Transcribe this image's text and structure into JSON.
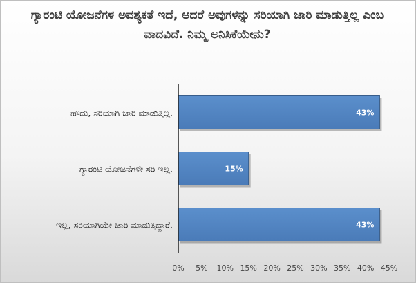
{
  "chart_data": {
    "type": "bar",
    "orientation": "horizontal",
    "title": "ಗ್ಯಾರಂಟಿ ಯೋಜನೆಗಳ ಅವಶ್ಯಕತೆ ಇದೆ, ಆದರೆ ಅವುಗಳನ್ನು ಸರಿಯಾಗಿ ಜಾರಿ ಮಾಡುತ್ತಿಲ್ಲ ಎಂಬ ವಾದವಿದೆ. ನಿಮ್ಮ ಅನಿಸಿಕೆಯೇನು?",
    "categories": [
      "ಹೌದು, ಸರಿಯಾಗಿ ಜಾರಿ ಮಾಡುತ್ತಿಲ್ಲ.",
      "ಗ್ಯಾರಂಟಿ ಯೋಜನೆಗಳೇ ಸರಿ ಇಲ್ಲ.",
      "ಇಲ್ಲ, ಸರಿಯಾಗಿಯೇ ಜಾರಿ ಮಾಡುತ್ತಿದ್ದಾರೆ."
    ],
    "values": [
      43,
      15,
      43
    ],
    "data_labels": [
      "43%",
      "15%",
      "43%"
    ],
    "xlim": [
      0,
      45
    ],
    "x_ticks": [
      "0%",
      "5%",
      "10%",
      "15%",
      "20%",
      "25%",
      "30%",
      "35%",
      "40%",
      "45%"
    ],
    "grid": false,
    "legend": "none",
    "bar_color": "#4f81bd",
    "bar_edge_color": "#385d8a"
  }
}
